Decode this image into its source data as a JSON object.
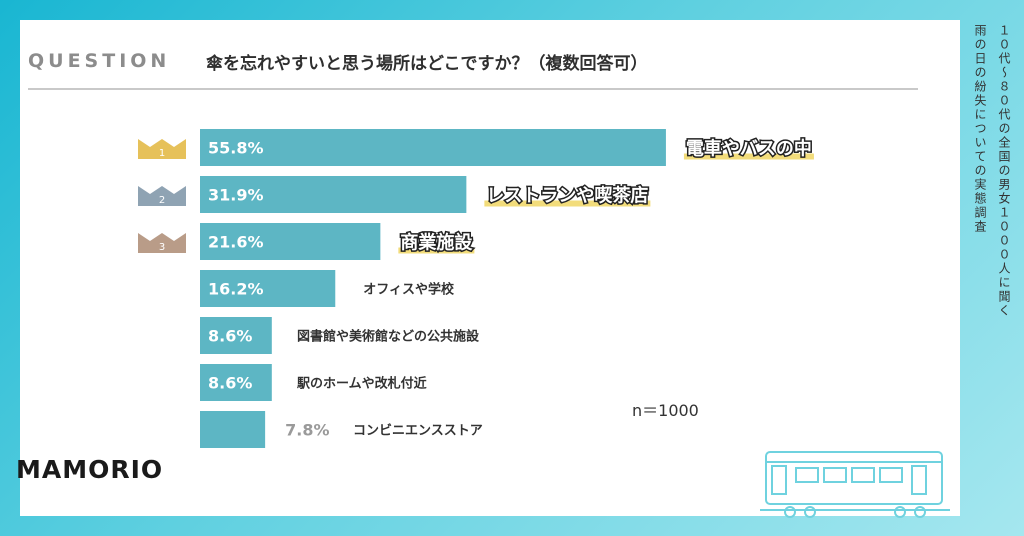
{
  "header": {
    "question_label": "QUESTION",
    "question_text": "傘を忘れやすいと思う場所はどこですか？（複数回答可）"
  },
  "brand": {
    "logo": "MAMORIO"
  },
  "side_caption": {
    "line1": "１０代〜８０代の全国の男女１０００人に聞く",
    "line2": "雨の日の紛失についての実態調査"
  },
  "sample_size": "n＝1000",
  "colors": {
    "bar": "#5db6c4",
    "rank1": "#e6c15a",
    "rank2": "#8fa3b3",
    "rank3": "#b99c88",
    "highlight_underline": "#f2dc7b"
  },
  "rank_badges": [
    "1",
    "2",
    "3"
  ],
  "chart_data": {
    "type": "bar",
    "orientation": "horizontal",
    "title": "傘を忘れやすいと思う場所はどこですか？（複数回答可）",
    "categories": [
      "電車やバスの中",
      "レストランや喫茶店",
      "商業施設",
      "オフィスや学校",
      "図書館や美術館などの公共施設",
      "駅のホームや改札付近",
      "コンビニエンスストア"
    ],
    "values": [
      55.8,
      31.9,
      21.6,
      16.2,
      8.6,
      8.6,
      7.8
    ],
    "value_labels": [
      "55.8%",
      "31.9%",
      "21.6%",
      "16.2%",
      "8.6%",
      "8.6%",
      "7.8%"
    ],
    "unit": "%",
    "xlim": [
      0,
      100
    ],
    "grid": false,
    "legend": "none"
  }
}
